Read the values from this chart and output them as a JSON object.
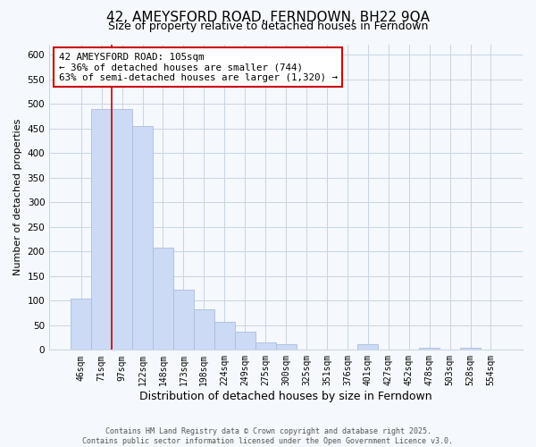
{
  "title": "42, AMEYSFORD ROAD, FERNDOWN, BH22 9QA",
  "subtitle": "Size of property relative to detached houses in Ferndown",
  "xlabel": "Distribution of detached houses by size in Ferndown",
  "ylabel": "Number of detached properties",
  "categories": [
    "46sqm",
    "71sqm",
    "97sqm",
    "122sqm",
    "148sqm",
    "173sqm",
    "198sqm",
    "224sqm",
    "249sqm",
    "275sqm",
    "300sqm",
    "325sqm",
    "351sqm",
    "376sqm",
    "401sqm",
    "427sqm",
    "452sqm",
    "478sqm",
    "503sqm",
    "528sqm",
    "554sqm"
  ],
  "values": [
    105,
    490,
    490,
    455,
    207,
    122,
    82,
    57,
    37,
    15,
    11,
    0,
    0,
    0,
    12,
    0,
    0,
    5,
    0,
    5,
    0
  ],
  "bar_color": "#ccdaf5",
  "bar_edge_color": "#a8bedd",
  "vline_color": "#cc0000",
  "annotation_text": "42 AMEYSFORD ROAD: 105sqm\n← 36% of detached houses are smaller (744)\n63% of semi-detached houses are larger (1,320) →",
  "ylim": [
    0,
    620
  ],
  "yticks": [
    0,
    50,
    100,
    150,
    200,
    250,
    300,
    350,
    400,
    450,
    500,
    550,
    600
  ],
  "title_fontsize": 11,
  "xlabel_fontsize": 9,
  "ylabel_fontsize": 8,
  "footer_line1": "Contains HM Land Registry data © Crown copyright and database right 2025.",
  "footer_line2": "Contains public sector information licensed under the Open Government Licence v3.0.",
  "bg_color": "#f5f8fc",
  "grid_color": "#c8d4e4"
}
